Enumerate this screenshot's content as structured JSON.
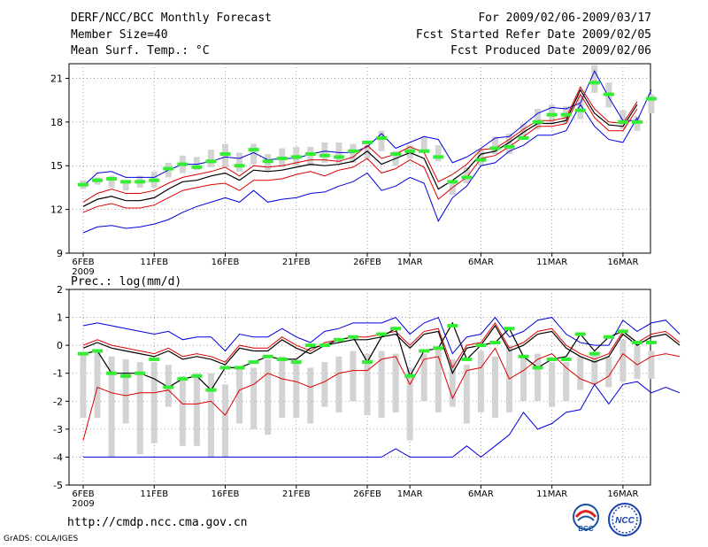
{
  "header": {
    "line1_left": "DERF/NCC/BCC Monthly Forecast",
    "line2_left": "Member Size=40",
    "line3_left": "Mean Surf. Temp.: °C",
    "line1_right": "For 2009/02/06-2009/03/17",
    "line2_right": "Fcst Started Refer Date 2009/02/05",
    "line3_right": "Fcst Produced Date 2009/02/06"
  },
  "footer": {
    "url": "http://cmdp.ncc.cma.gov.cn",
    "credit": "GrADS: COLA/IGES",
    "logo_bcc_text": "BCC",
    "logo_ncc_text": "NCC"
  },
  "colors": {
    "max_min": "#0000dd",
    "pct": "#dd0000",
    "mean": "#000000",
    "obs": "#33ee33",
    "box": "#d3d3d3",
    "grid": "#888888"
  },
  "chart_data": [
    {
      "type": "line",
      "title": "Mean Surf. Temp.: °C",
      "ylim": [
        9,
        22
      ],
      "yticks": [
        9,
        12,
        15,
        18,
        21
      ],
      "ytick_labels": [
        "9",
        "12",
        "15",
        "18",
        "21"
      ],
      "xtick_labels": [
        {
          "i": 0,
          "label": "6FEB",
          "sub": "2009"
        },
        {
          "i": 5,
          "label": "11FEB"
        },
        {
          "i": 10,
          "label": "16FEB"
        },
        {
          "i": 15,
          "label": "21FEB"
        },
        {
          "i": 20,
          "label": "26FEB"
        },
        {
          "i": 23,
          "label": "1MAR"
        },
        {
          "i": 28,
          "label": "6MAR"
        },
        {
          "i": 33,
          "label": "11MAR"
        },
        {
          "i": 38,
          "label": "16MAR"
        }
      ],
      "series": [
        {
          "name": "max",
          "values": [
            13.6,
            14.5,
            14.6,
            14.2,
            14.2,
            14.2,
            14.7,
            15.1,
            15.1,
            15.3,
            15.6,
            15.5,
            15.9,
            15.4,
            15.5,
            15.5,
            15.8,
            16.0,
            15.9,
            15.9,
            16.3,
            17.2,
            16.2,
            16.6,
            17.0,
            16.8,
            15.2,
            15.6,
            16.2,
            16.9,
            17.0,
            17.8,
            18.6,
            19.0,
            18.9,
            19.3,
            21.5,
            19.7,
            18.1,
            18.1,
            20.2
          ]
        },
        {
          "name": "p90",
          "values": [
            12.5,
            13.1,
            13.4,
            13.1,
            13.1,
            13.3,
            13.8,
            14.2,
            14.4,
            14.6,
            14.9,
            14.3,
            15.0,
            14.9,
            15.0,
            15.2,
            15.4,
            15.4,
            15.3,
            15.6,
            16.4,
            15.5,
            15.8,
            16.3,
            15.9,
            13.9,
            14.4,
            15.1,
            16.1,
            16.2,
            16.8,
            17.5,
            18.1,
            18.1,
            18.3,
            20.4,
            18.9,
            18.0,
            17.9,
            19.4
          ]
        },
        {
          "name": "mean",
          "values": [
            12.2,
            12.7,
            12.9,
            12.6,
            12.6,
            12.8,
            13.4,
            13.9,
            14.0,
            14.3,
            14.5,
            14.0,
            14.7,
            14.6,
            14.7,
            14.9,
            15.1,
            15.0,
            15.1,
            15.3,
            16.0,
            15.1,
            15.5,
            15.9,
            15.5,
            13.4,
            14.0,
            14.7,
            15.8,
            16.0,
            16.6,
            17.3,
            17.9,
            17.9,
            18.1,
            20.2,
            18.6,
            17.8,
            17.7,
            19.2
          ]
        },
        {
          "name": "p10",
          "values": [
            11.8,
            12.2,
            12.4,
            12.1,
            12.1,
            12.3,
            12.8,
            13.3,
            13.5,
            13.7,
            13.8,
            13.3,
            14.0,
            14.0,
            14.1,
            14.4,
            14.6,
            14.3,
            14.7,
            14.9,
            15.5,
            14.5,
            14.8,
            15.4,
            14.9,
            12.7,
            13.5,
            14.2,
            15.5,
            15.7,
            16.3,
            17.0,
            17.7,
            17.7,
            17.9,
            19.9,
            18.3,
            17.4,
            17.4,
            18.9
          ]
        },
        {
          "name": "min",
          "values": [
            10.4,
            10.8,
            10.9,
            10.7,
            10.8,
            11.0,
            11.3,
            11.8,
            12.2,
            12.5,
            12.8,
            12.5,
            13.3,
            12.5,
            12.7,
            12.8,
            13.1,
            13.2,
            13.6,
            13.9,
            14.5,
            13.3,
            13.6,
            14.2,
            13.8,
            11.2,
            12.8,
            13.6,
            15.0,
            15.2,
            16.0,
            16.4,
            17.1,
            17.1,
            17.4,
            19.2,
            17.7,
            16.8,
            16.6,
            18.3
          ]
        }
      ],
      "boxes": [
        [
          13.4,
          14.0
        ],
        [
          13.7,
          14.2
        ],
        [
          13.5,
          14.3
        ],
        [
          13.3,
          14.0
        ],
        [
          13.5,
          14.3
        ],
        [
          13.5,
          14.6
        ],
        [
          14.2,
          15.2
        ],
        [
          14.5,
          15.7
        ],
        [
          14.7,
          15.6
        ],
        [
          14.9,
          16.1
        ],
        [
          14.9,
          16.5
        ],
        [
          14.6,
          15.9
        ],
        [
          15.1,
          16.5
        ],
        [
          14.6,
          15.8
        ],
        [
          14.9,
          16.2
        ],
        [
          15.0,
          16.3
        ],
        [
          15.0,
          16.3
        ],
        [
          15.2,
          16.6
        ],
        [
          15.2,
          16.6
        ],
        [
          15.2,
          16.5
        ],
        [
          15.5,
          16.4
        ],
        [
          16.0,
          17.4
        ],
        [
          15.0,
          16.0
        ],
        [
          15.5,
          16.4
        ],
        [
          16.0,
          17.0
        ],
        [
          15.3,
          16.4
        ],
        [
          13.0,
          14.0
        ],
        [
          13.8,
          14.9
        ],
        [
          15.0,
          16.1
        ],
        [
          15.8,
          17.0
        ],
        [
          15.8,
          17.2
        ],
        [
          16.8,
          17.9
        ],
        [
          17.5,
          18.9
        ],
        [
          17.9,
          19.2
        ],
        [
          17.9,
          19.1
        ],
        [
          18.2,
          19.8
        ],
        [
          20.0,
          21.9
        ],
        [
          19.0,
          20.7
        ],
        [
          17.5,
          18.8
        ],
        [
          17.4,
          18.4
        ],
        [
          18.6,
          19.9
        ]
      ],
      "obs": [
        13.7,
        14.0,
        14.1,
        13.9,
        13.9,
        14.0,
        14.8,
        15.1,
        14.9,
        15.3,
        15.8,
        15.0,
        16.1,
        15.3,
        15.5,
        15.6,
        15.8,
        15.7,
        15.6,
        16.0,
        16.6,
        16.9,
        15.8,
        16.0,
        16.0,
        15.6,
        13.9,
        14.2,
        15.4,
        16.2,
        16.3,
        16.9,
        18.0,
        18.5,
        18.5,
        18.8,
        20.7,
        19.9,
        18.0,
        18.0,
        19.6
      ]
    },
    {
      "type": "line",
      "title": "Prec.: log(mm/d)",
      "ylim": [
        -5,
        2
      ],
      "yticks": [
        -5,
        -4,
        -3,
        -2,
        -1,
        0,
        1,
        2
      ],
      "ytick_labels": [
        "-5",
        "-4",
        "-3",
        "-2",
        "-1",
        "0",
        "1",
        "2"
      ],
      "xtick_labels": [
        {
          "i": 0,
          "label": "6FEB",
          "sub": "2009"
        },
        {
          "i": 5,
          "label": "11FEB"
        },
        {
          "i": 10,
          "label": "16FEB"
        },
        {
          "i": 15,
          "label": "21FEB"
        },
        {
          "i": 20,
          "label": "26FEB"
        },
        {
          "i": 23,
          "label": "1MAR"
        },
        {
          "i": 28,
          "label": "6MAR"
        },
        {
          "i": 33,
          "label": "11MAR"
        },
        {
          "i": 38,
          "label": "16MAR"
        }
      ],
      "series": [
        {
          "name": "max",
          "values": [
            0.7,
            0.8,
            0.7,
            0.6,
            0.5,
            0.4,
            0.5,
            0.2,
            0.3,
            0.3,
            -0.2,
            0.4,
            0.3,
            0.3,
            0.6,
            0.3,
            0.1,
            0.5,
            0.6,
            0.8,
            0.8,
            0.8,
            1.0,
            0.4,
            0.8,
            1.0,
            -0.3,
            0.3,
            0.4,
            1.0,
            0.3,
            0.5,
            0.9,
            1.0,
            0.4,
            0.1,
            0.0,
            0.0,
            0.9,
            0.5,
            0.8,
            0.9,
            0.4
          ]
        },
        {
          "name": "p90",
          "values": [
            0.0,
            0.2,
            0.0,
            -0.1,
            -0.2,
            -0.3,
            -0.1,
            -0.4,
            -0.3,
            -0.4,
            -0.6,
            0.0,
            -0.1,
            -0.1,
            0.3,
            0.0,
            -0.2,
            0.1,
            0.2,
            0.3,
            0.3,
            0.4,
            0.5,
            0.0,
            0.5,
            0.6,
            -0.8,
            0.0,
            0.1,
            0.8,
            -0.1,
            0.1,
            0.5,
            0.6,
            0.0,
            -0.3,
            -0.5,
            -0.3,
            0.5,
            0.1,
            0.4,
            0.5,
            0.1
          ]
        },
        {
          "name": "mean",
          "values": [
            -0.1,
            0.1,
            -0.1,
            -0.2,
            -0.3,
            -0.4,
            -0.2,
            -0.5,
            -0.4,
            -0.5,
            -0.7,
            -0.1,
            -0.2,
            -0.2,
            0.2,
            -0.1,
            -0.3,
            0.0,
            0.1,
            0.2,
            0.2,
            0.3,
            0.4,
            -0.1,
            0.4,
            0.5,
            -1.0,
            -0.1,
            0.0,
            0.7,
            -0.2,
            0.0,
            0.4,
            0.5,
            -0.1,
            -0.4,
            -0.6,
            -0.4,
            0.4,
            0.0,
            0.3,
            0.4,
            0.0
          ]
        },
        {
          "name": "p10",
          "values": [
            -3.4,
            -1.5,
            -1.7,
            -1.8,
            -1.7,
            -1.7,
            -1.6,
            -2.1,
            -2.1,
            -2.0,
            -2.5,
            -1.6,
            -1.4,
            -1.0,
            -1.2,
            -1.3,
            -1.5,
            -1.3,
            -1.0,
            -0.9,
            -0.9,
            -0.5,
            -0.4,
            -1.4,
            -0.5,
            -0.4,
            -1.9,
            -0.9,
            -0.8,
            -0.1,
            -1.2,
            -0.9,
            -0.5,
            -0.3,
            -0.8,
            -1.2,
            -1.4,
            -1.1,
            -0.3,
            -0.7,
            -0.4,
            -0.3,
            -0.4
          ]
        },
        {
          "name": "min",
          "values": [
            -4.0,
            -4.0,
            -4.0,
            -4.0,
            -4.0,
            -4.0,
            -4.0,
            -4.0,
            -4.0,
            -4.0,
            -4.0,
            -4.0,
            -4.0,
            -4.0,
            -4.0,
            -4.0,
            -4.0,
            -4.0,
            -4.0,
            -4.0,
            -4.0,
            -4.0,
            -3.7,
            -4.0,
            -4.0,
            -4.0,
            -4.0,
            -3.6,
            -4.0,
            -3.6,
            -3.2,
            -2.4,
            -3.0,
            -2.8,
            -2.4,
            -2.3,
            -1.4,
            -2.1,
            -1.4,
            -1.3,
            -1.7,
            -1.5,
            -1.7
          ]
        },
        {
          "name": "obs_line",
          "values": [
            -0.3,
            -0.2,
            -1.0,
            -1.0,
            -1.0,
            -1.2,
            -1.5,
            -1.2,
            -1.1,
            -1.6,
            -0.8,
            -0.8,
            -0.6,
            -0.4,
            -0.5,
            -0.5,
            -0.1,
            0.0,
            0.2,
            0.3,
            -0.6,
            0.3,
            0.6,
            -1.1,
            -0.2,
            -0.1,
            0.8,
            -0.5,
            0.0,
            0.1,
            0.6,
            -0.4,
            -0.8,
            -0.5,
            -0.4,
            0.4,
            -0.2,
            0.3,
            0.5,
            0.1
          ]
        }
      ],
      "boxes": [
        [
          -2.6,
          -0.3
        ],
        [
          -2.6,
          -0.2
        ],
        [
          -4.0,
          -0.4
        ],
        [
          -2.8,
          -0.5
        ],
        [
          -3.9,
          -0.6
        ],
        [
          -3.5,
          -0.6
        ],
        [
          -2.2,
          -0.7
        ],
        [
          -3.6,
          -1.1
        ],
        [
          -3.6,
          -1.0
        ],
        [
          -4.0,
          -1.0
        ],
        [
          -4.0,
          -1.4
        ],
        [
          -2.8,
          -0.8
        ],
        [
          -3.0,
          -0.8
        ],
        [
          -3.2,
          -0.5
        ],
        [
          -2.6,
          -0.4
        ],
        [
          -2.6,
          -0.6
        ],
        [
          -2.8,
          -0.8
        ],
        [
          -2.2,
          -0.6
        ],
        [
          -2.4,
          -0.4
        ],
        [
          -2.0,
          -0.2
        ],
        [
          -2.5,
          -0.3
        ],
        [
          -2.6,
          -0.2
        ],
        [
          -2.4,
          -0.3
        ],
        [
          -3.4,
          -0.8
        ],
        [
          -2.0,
          -0.3
        ],
        [
          -2.4,
          -0.1
        ],
        [
          -2.2,
          -0.5
        ],
        [
          -2.8,
          -0.7
        ],
        [
          -2.4,
          -0.2
        ],
        [
          -2.6,
          -0.4
        ],
        [
          -2.4,
          0.0
        ],
        [
          -2.0,
          -0.4
        ],
        [
          -2.0,
          -0.3
        ],
        [
          -2.2,
          -0.6
        ],
        [
          -2.0,
          -0.6
        ],
        [
          -1.6,
          -0.4
        ],
        [
          -1.4,
          -0.3
        ],
        [
          -1.5,
          -0.4
        ],
        [
          -1.3,
          0.2
        ],
        [
          -1.2,
          0.0
        ],
        [
          -1.2,
          -0.2
        ]
      ],
      "obs": [
        -0.3,
        -0.2,
        -1.0,
        -1.1,
        -1.0,
        -0.5,
        -1.5,
        -1.2,
        -1.1,
        -1.6,
        -0.8,
        -0.8,
        -0.6,
        -0.4,
        -0.5,
        -0.6,
        0.0,
        0.0,
        0.2,
        0.3,
        -0.6,
        0.4,
        0.6,
        -1.1,
        -0.2,
        -0.1,
        0.7,
        -0.5,
        0.0,
        0.1,
        0.6,
        -0.4,
        -0.8,
        -0.5,
        -0.5,
        0.4,
        -0.3,
        0.3,
        0.5,
        0.1,
        0.1
      ]
    }
  ]
}
